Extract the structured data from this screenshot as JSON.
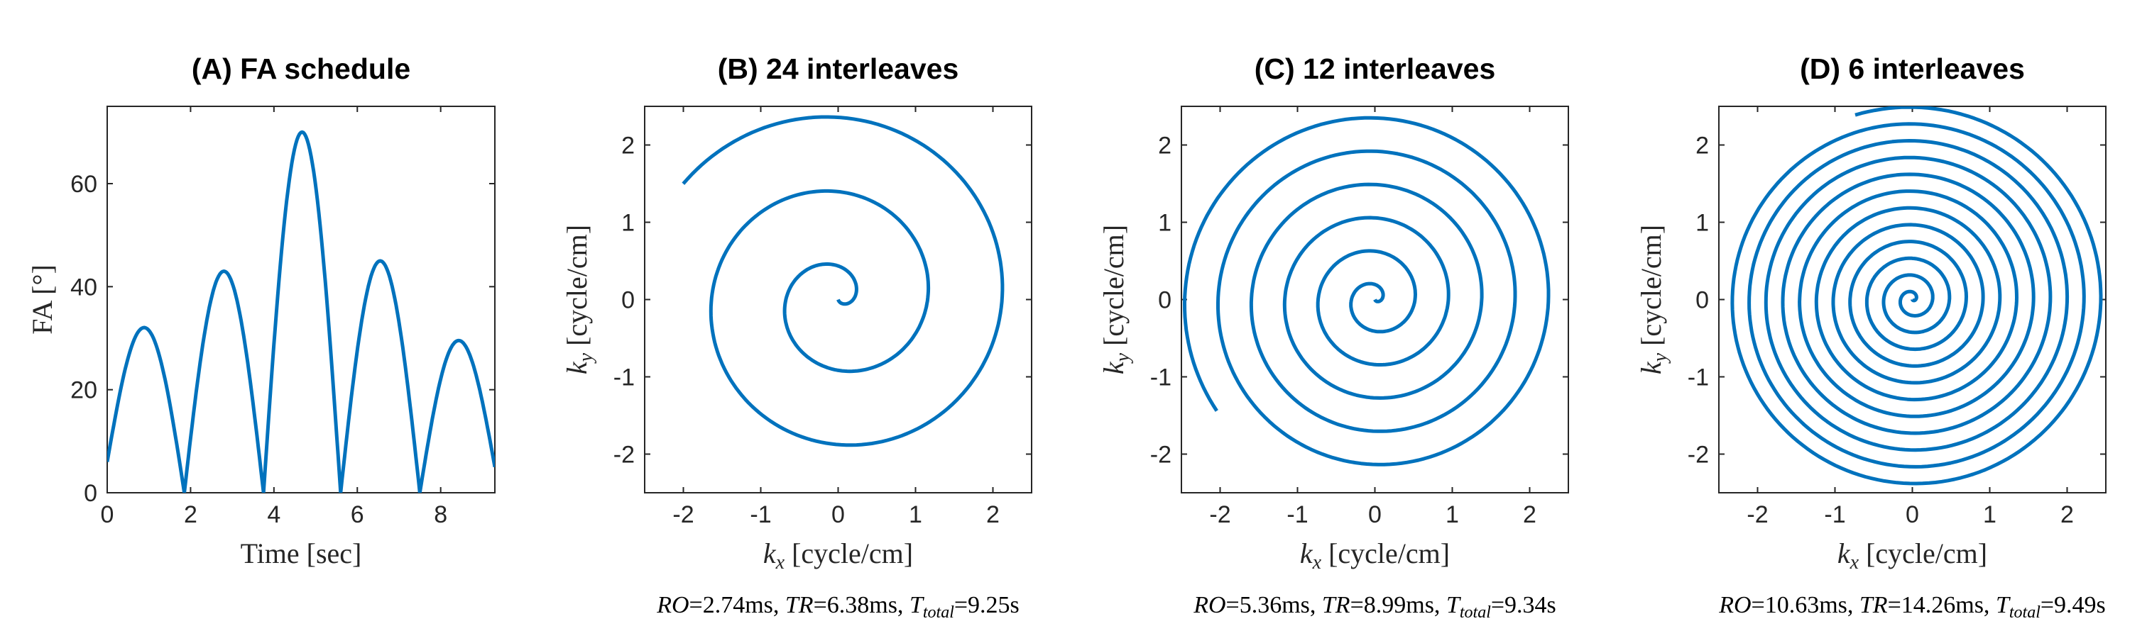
{
  "chart_data": [
    {
      "panel": "A",
      "type": "line",
      "title": "(A) FA schedule",
      "xlabel": "Time [sec]",
      "ylabel": "FA [°]",
      "xlim": [
        0,
        9.3
      ],
      "ylim": [
        0,
        75
      ],
      "xticks": [
        "0",
        "2",
        "4",
        "6",
        "8"
      ],
      "yticks": [
        "0",
        "20",
        "40",
        "60"
      ],
      "series": [
        {
          "segments": [
            {
              "start": 0.0,
              "end": 1.85,
              "peak": 35,
              "start_value": 6
            },
            {
              "start": 1.85,
              "end": 3.75,
              "peak": 43
            },
            {
              "start": 3.75,
              "end": 5.6,
              "peak": 70
            },
            {
              "start": 5.6,
              "end": 7.5,
              "peak": 45
            },
            {
              "start": 7.5,
              "end": 9.3,
              "peak": 27,
              "end_value": 5
            }
          ]
        }
      ],
      "caption": ""
    },
    {
      "panel": "B",
      "type": "line",
      "title": "(B) 24 interleaves",
      "xlabel": "k_x [cycle/cm]",
      "ylabel": "k_y [cycle/cm]",
      "xlim": [
        -2.5,
        2.5
      ],
      "ylim": [
        -2.5,
        2.5
      ],
      "xticks": [
        "-2",
        "-1",
        "0",
        "1",
        "2"
      ],
      "yticks": [
        "-2",
        "-1",
        "0",
        "1",
        "2"
      ],
      "interleaves": 24,
      "spiral_turns": 2.6,
      "k_max": 2.5,
      "caption": {
        "RO": "2.74ms",
        "TR": "6.38ms",
        "Ttotal": "9.25s"
      }
    },
    {
      "panel": "C",
      "type": "line",
      "title": "(C) 12 interleaves",
      "xlabel": "k_x [cycle/cm]",
      "ylabel": "k_y [cycle/cm]",
      "xlim": [
        -2.5,
        2.5
      ],
      "ylim": [
        -2.5,
        2.5
      ],
      "xticks": [
        "-2",
        "-1",
        "0",
        "1",
        "2"
      ],
      "yticks": [
        "-2",
        "-1",
        "0",
        "1",
        "2"
      ],
      "interleaves": 12,
      "spiral_turns": 5.8,
      "k_max": 2.5,
      "caption": {
        "RO": "5.36ms",
        "TR": "8.99ms",
        "Ttotal": "9.34s"
      }
    },
    {
      "panel": "D",
      "type": "line",
      "title": "(D) 6 interleaves",
      "xlabel": "k_x [cycle/cm]",
      "ylabel": "k_y [cycle/cm]",
      "xlim": [
        -2.5,
        2.5
      ],
      "ylim": [
        -2.5,
        2.5
      ],
      "xticks": [
        "-2",
        "-1",
        "0",
        "1",
        "2"
      ],
      "yticks": [
        "-2",
        "-1",
        "0",
        "1",
        "2"
      ],
      "interleaves": 6,
      "spiral_turns": 11.5,
      "k_max": 2.5,
      "caption": {
        "RO": "10.63ms",
        "TR": "14.26ms",
        "Ttotal": "9.49s"
      }
    }
  ]
}
